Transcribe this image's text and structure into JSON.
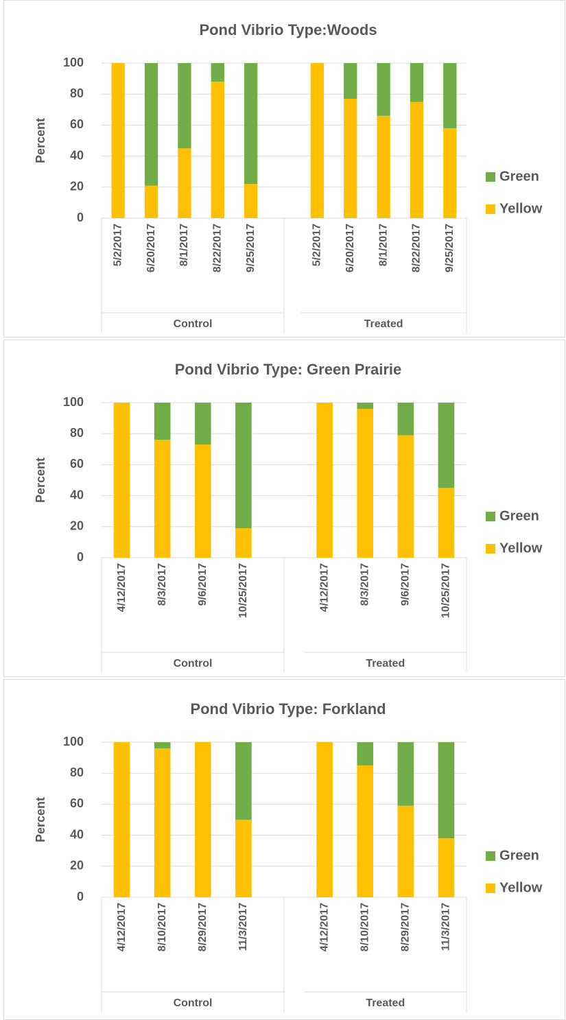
{
  "chart_data": [
    {
      "type": "bar",
      "stacked": true,
      "title": "Pond Vibrio Type:Woods",
      "y_label": "Percent",
      "groups": [
        {
          "name": "Control",
          "categories": [
            "5/2/2017",
            "6/20/2017",
            "8/1/2017",
            "8/22/2017",
            "9/25/2017"
          ]
        },
        {
          "name": "Treated",
          "categories": [
            "5/2/2017",
            "6/20/2017",
            "8/1/2017",
            "8/22/2017",
            "9/25/2017"
          ]
        }
      ],
      "series": [
        {
          "name": "Yellow",
          "color": "#FFC000",
          "values": [
            [
              100,
              21,
              45,
              88,
              22
            ],
            [
              100,
              77,
              66,
              75,
              58
            ]
          ]
        },
        {
          "name": "Green",
          "color": "#70AD47",
          "values": [
            [
              0,
              79,
              55,
              12,
              78
            ],
            [
              0,
              23,
              34,
              25,
              42
            ]
          ]
        }
      ],
      "ylim": [
        0,
        100
      ],
      "yticks": [
        0,
        20,
        40,
        60,
        80,
        100
      ],
      "grid": true,
      "legend": "right"
    },
    {
      "type": "bar",
      "stacked": true,
      "title": "Pond Vibrio Type: Green Prairie",
      "y_label": "Percent",
      "groups": [
        {
          "name": "Control",
          "categories": [
            "4/12/2017",
            "8/3/2017",
            "9/6/2017",
            "10/25/2017"
          ]
        },
        {
          "name": "Treated",
          "categories": [
            "4/12/2017",
            "8/3/2017",
            "9/6/2017",
            "10/25/2017"
          ]
        }
      ],
      "series": [
        {
          "name": "Yellow",
          "color": "#FFC000",
          "values": [
            [
              100,
              76,
              73,
              19
            ],
            [
              100,
              96,
              79,
              45
            ]
          ]
        },
        {
          "name": "Green",
          "color": "#70AD47",
          "values": [
            [
              0,
              24,
              27,
              81
            ],
            [
              0,
              4,
              21,
              55
            ]
          ]
        }
      ],
      "ylim": [
        0,
        100
      ],
      "yticks": [
        0,
        20,
        40,
        60,
        80,
        100
      ],
      "grid": true,
      "legend": "right"
    },
    {
      "type": "bar",
      "stacked": true,
      "title": "Pond Vibrio Type: Forkland",
      "y_label": "Percent",
      "groups": [
        {
          "name": "Control",
          "categories": [
            "4/12/2017",
            "8/10/2017",
            "8/29/2017",
            "11/3/2017"
          ]
        },
        {
          "name": "Treated",
          "categories": [
            "4/12/2017",
            "8/10/2017",
            "8/29/2017",
            "11/3/2017"
          ]
        }
      ],
      "series": [
        {
          "name": "Yellow",
          "color": "#FFC000",
          "values": [
            [
              100,
              96,
              100,
              50
            ],
            [
              100,
              85,
              59,
              38
            ]
          ]
        },
        {
          "name": "Green",
          "color": "#70AD47",
          "values": [
            [
              0,
              4,
              0,
              50
            ],
            [
              0,
              15,
              41,
              62
            ]
          ]
        }
      ],
      "ylim": [
        0,
        100
      ],
      "yticks": [
        0,
        20,
        40,
        60,
        80,
        100
      ],
      "grid": true,
      "legend": "right"
    }
  ]
}
